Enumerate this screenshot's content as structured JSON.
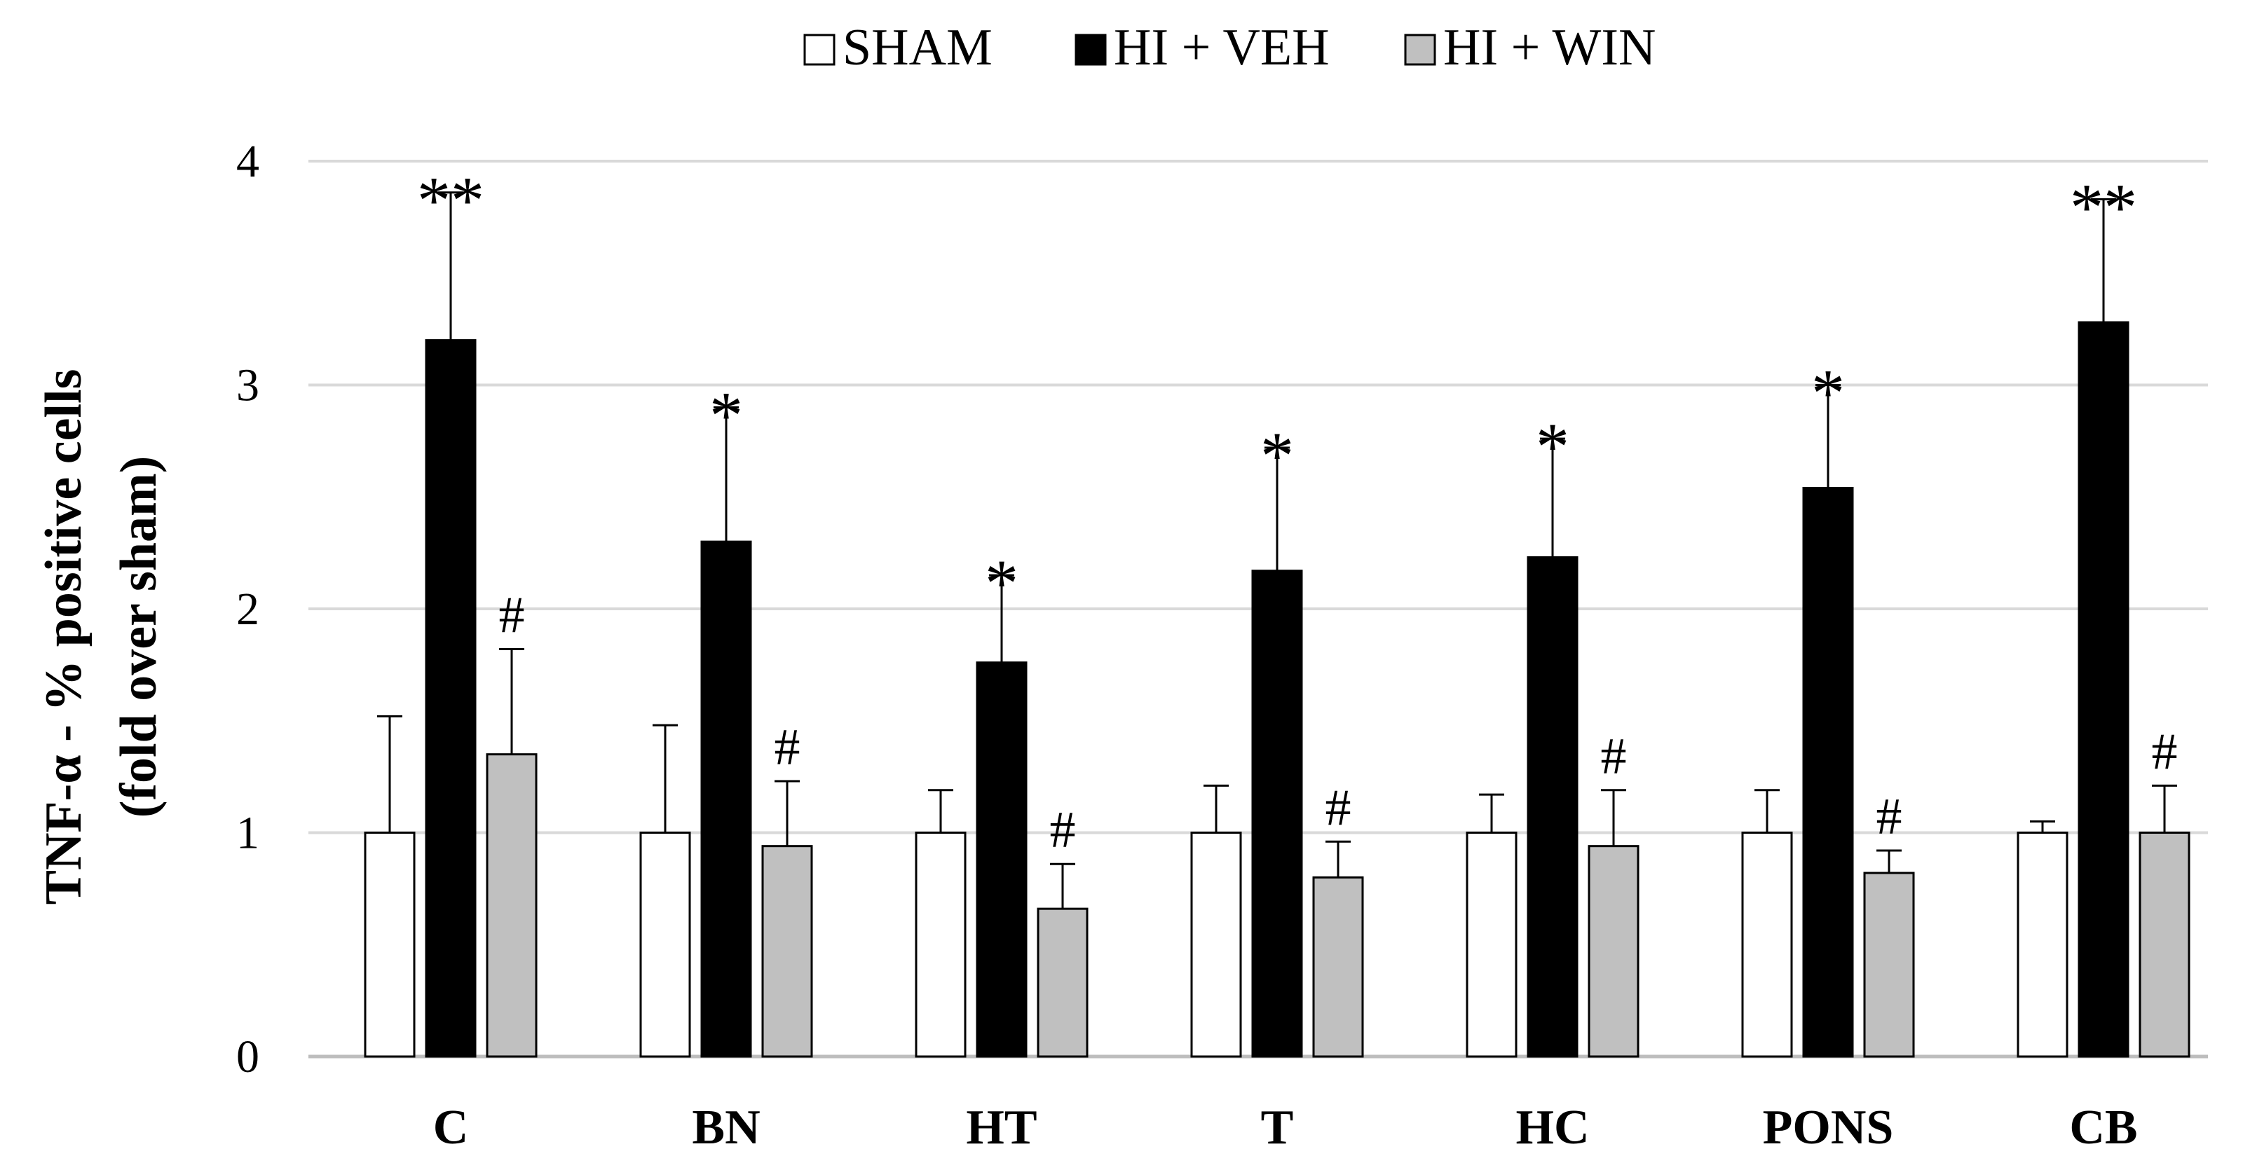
{
  "chart_data": {
    "type": "bar",
    "title": "",
    "ylabel_line1": "TNF-α  - % positive cells",
    "ylabel_line2": "(fold over sham)",
    "xlabel": "",
    "ylim": [
      0,
      4
    ],
    "yticks": [
      0,
      1,
      2,
      3,
      4
    ],
    "grid": true,
    "legend_position": "top-center",
    "categories": [
      "C",
      "BN",
      "HT",
      "T",
      "HC",
      "PONS",
      "CB"
    ],
    "series": [
      {
        "name": "SHAM",
        "color": "#ffffff",
        "values": [
          1.0,
          1.0,
          1.0,
          1.0,
          1.0,
          1.0,
          1.0
        ],
        "errors": [
          0.52,
          0.48,
          0.19,
          0.21,
          0.17,
          0.19,
          0.05
        ],
        "markers": [
          "",
          "",
          "",
          "",
          "",
          "",
          ""
        ]
      },
      {
        "name": "HI + VEH",
        "color": "#000000",
        "values": [
          3.2,
          2.3,
          1.76,
          2.17,
          2.23,
          2.54,
          3.28
        ],
        "errors": [
          0.66,
          0.6,
          0.39,
          0.55,
          0.53,
          0.46,
          0.55
        ],
        "markers": [
          "**",
          "*",
          "*",
          "*",
          "*",
          "*",
          "**"
        ]
      },
      {
        "name": "HI + WIN",
        "color": "#c0c0c0",
        "values": [
          1.35,
          0.94,
          0.66,
          0.8,
          0.94,
          0.82,
          1.0
        ],
        "errors": [
          0.47,
          0.29,
          0.2,
          0.16,
          0.25,
          0.1,
          0.21
        ],
        "markers": [
          "#",
          "#",
          "#",
          "#",
          "#",
          "#",
          "#"
        ]
      }
    ]
  }
}
